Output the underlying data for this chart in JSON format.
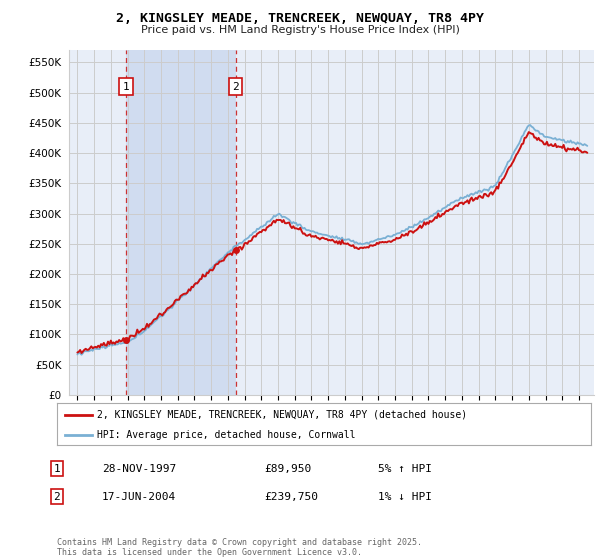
{
  "title_line1": "2, KINGSLEY MEADE, TRENCREEK, NEWQUAY, TR8 4PY",
  "title_line2": "Price paid vs. HM Land Registry's House Price Index (HPI)",
  "ylim": [
    0,
    570000
  ],
  "yticks": [
    0,
    50000,
    100000,
    150000,
    200000,
    250000,
    300000,
    350000,
    400000,
    450000,
    500000,
    550000
  ],
  "ytick_labels": [
    "£0",
    "£50K",
    "£100K",
    "£150K",
    "£200K",
    "£250K",
    "£300K",
    "£350K",
    "£400K",
    "£450K",
    "£500K",
    "£550K"
  ],
  "background_color": "#ffffff",
  "plot_bg_color": "#e8eef8",
  "plot_bg_between_purchases": "#d0dcf0",
  "grid_color": "#cccccc",
  "line_color_hpi": "#7ab0d4",
  "line_color_price": "#cc1111",
  "purchase1_date_num": 1997.91,
  "purchase1_price": 89950,
  "purchase1_label": "1",
  "purchase2_date_num": 2004.46,
  "purchase2_price": 239750,
  "purchase2_label": "2",
  "legend_line1": "2, KINGSLEY MEADE, TRENCREEK, NEWQUAY, TR8 4PY (detached house)",
  "legend_line2": "HPI: Average price, detached house, Cornwall",
  "table_row1": [
    "1",
    "28-NOV-1997",
    "£89,950",
    "5% ↑ HPI"
  ],
  "table_row2": [
    "2",
    "17-JUN-2004",
    "£239,750",
    "1% ↓ HPI"
  ],
  "footer": "Contains HM Land Registry data © Crown copyright and database right 2025.\nThis data is licensed under the Open Government Licence v3.0.",
  "xlim_start": 1994.5,
  "xlim_end": 2025.9
}
